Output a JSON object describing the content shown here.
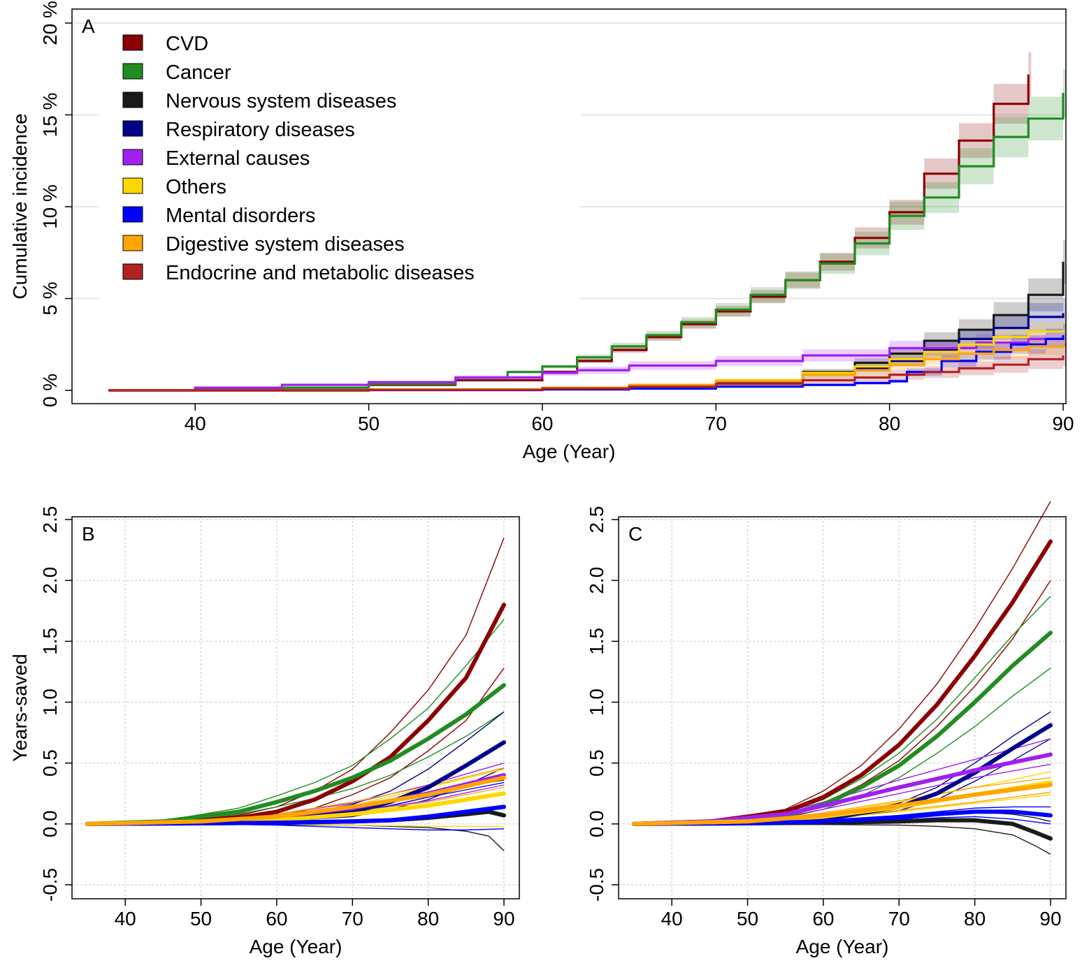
{
  "colors": {
    "CVD": "#8B0000",
    "Cancer": "#228B22",
    "Nervous system diseases": "#1a1a1a",
    "Respiratory diseases": "#00008B",
    "External causes": "#A020F0",
    "Others": "#FFD700",
    "Mental disorders": "#0000FF",
    "Digestive system diseases": "#FFA500",
    "Endocrine and metabolic diseases": "#B22222"
  },
  "chart_data": [
    {
      "panel": "A",
      "type": "line",
      "step": true,
      "title": "",
      "xlabel": "Age (Year)",
      "ylabel": "Cumulative incidence",
      "xlim": [
        35,
        90
      ],
      "ylim": [
        0,
        20
      ],
      "xticks": [
        40,
        50,
        60,
        70,
        80,
        90
      ],
      "yticks": [
        0,
        5,
        10,
        15,
        20
      ],
      "ytick_labels": [
        "0 %",
        "5 %",
        "10 %",
        "15 %",
        "20 %"
      ],
      "grid": "horizontal",
      "legend": {
        "placement": "top-left",
        "entries": [
          "CVD",
          "Cancer",
          "Nervous system diseases",
          "Respiratory diseases",
          "External causes",
          "Others",
          "Mental disorders",
          "Digestive system diseases",
          "Endocrine and metabolic diseases"
        ]
      },
      "series": [
        {
          "name": "CVD",
          "x": [
            35,
            40,
            45,
            50,
            55,
            60,
            62,
            64,
            66,
            68,
            70,
            72,
            74,
            76,
            78,
            80,
            82,
            84,
            86,
            88
          ],
          "y": [
            0,
            0.05,
            0.15,
            0.3,
            0.55,
            1.0,
            1.6,
            2.2,
            2.9,
            3.6,
            4.3,
            5.1,
            6.0,
            7.0,
            8.3,
            9.7,
            11.8,
            13.6,
            15.6,
            17.2
          ],
          "band": 1.2
        },
        {
          "name": "Cancer",
          "x": [
            35,
            40,
            45,
            50,
            55,
            58,
            60,
            62,
            64,
            66,
            68,
            70,
            72,
            74,
            76,
            78,
            80,
            82,
            84,
            86,
            88,
            90
          ],
          "y": [
            0,
            0.05,
            0.15,
            0.35,
            0.7,
            1.0,
            1.3,
            1.8,
            2.4,
            3.0,
            3.7,
            4.4,
            5.2,
            6.0,
            6.9,
            8.0,
            9.5,
            10.5,
            12.2,
            13.8,
            14.8,
            16.2
          ],
          "band": 1.3
        },
        {
          "name": "Nervous system diseases",
          "x": [
            35,
            50,
            60,
            65,
            70,
            75,
            78,
            80,
            82,
            84,
            86,
            88,
            90
          ],
          "y": [
            0,
            0.03,
            0.1,
            0.25,
            0.5,
            1.0,
            1.5,
            2.0,
            2.7,
            3.3,
            4.1,
            5.2,
            7.0
          ],
          "band": 1.2
        },
        {
          "name": "Respiratory diseases",
          "x": [
            35,
            50,
            60,
            65,
            70,
            75,
            78,
            80,
            82,
            84,
            86,
            88,
            90
          ],
          "y": [
            0,
            0.02,
            0.08,
            0.2,
            0.45,
            0.9,
            1.2,
            1.6,
            2.2,
            2.8,
            3.4,
            4.0,
            4.2
          ],
          "band": 0.8
        },
        {
          "name": "External causes",
          "x": [
            35,
            40,
            45,
            50,
            55,
            60,
            62,
            65,
            70,
            75,
            80,
            85,
            88,
            90
          ],
          "y": [
            0,
            0.15,
            0.3,
            0.45,
            0.7,
            0.95,
            1.1,
            1.35,
            1.6,
            1.9,
            2.3,
            2.6,
            2.8,
            2.9
          ],
          "band": 0.5
        },
        {
          "name": "Others",
          "x": [
            35,
            50,
            60,
            65,
            70,
            75,
            78,
            80,
            82,
            84,
            86,
            88,
            90
          ],
          "y": [
            0,
            0.05,
            0.15,
            0.3,
            0.55,
            0.95,
            1.3,
            1.7,
            2.1,
            2.5,
            2.9,
            3.2,
            3.3
          ],
          "band": 0.5
        },
        {
          "name": "Mental disorders",
          "x": [
            35,
            50,
            60,
            65,
            70,
            75,
            78,
            80,
            81,
            83,
            85,
            87,
            89,
            90
          ],
          "y": [
            0,
            0.02,
            0.05,
            0.1,
            0.2,
            0.3,
            0.4,
            0.5,
            1.0,
            1.6,
            2.1,
            2.5,
            2.8,
            3.0
          ],
          "band": 0.6
        },
        {
          "name": "Digestive system diseases",
          "x": [
            35,
            50,
            60,
            65,
            70,
            75,
            78,
            80,
            82,
            84,
            86,
            88,
            90
          ],
          "y": [
            0,
            0.05,
            0.15,
            0.3,
            0.5,
            0.85,
            1.1,
            1.4,
            1.7,
            2.0,
            2.2,
            2.4,
            2.5
          ],
          "band": 0.5
        },
        {
          "name": "Endocrine and metabolic diseases",
          "x": [
            35,
            50,
            60,
            65,
            70,
            75,
            78,
            80,
            82,
            84,
            86,
            88,
            90
          ],
          "y": [
            0,
            0.03,
            0.1,
            0.2,
            0.35,
            0.55,
            0.7,
            0.85,
            1.0,
            1.2,
            1.4,
            1.7,
            1.9
          ],
          "band": 0.6
        }
      ]
    },
    {
      "panel": "B",
      "type": "line",
      "title": "",
      "xlabel": "Age (Year)",
      "ylabel": "Years-saved",
      "xlim": [
        35,
        90
      ],
      "ylim": [
        -0.5,
        2.5
      ],
      "xticks": [
        40,
        50,
        60,
        70,
        80,
        90
      ],
      "yticks": [
        -0.5,
        0.0,
        0.5,
        1.0,
        1.5,
        2.0,
        2.5
      ],
      "ytick_labels": [
        "-0.5",
        "0.0",
        "0.5",
        "1.0",
        "1.5",
        "2.0",
        "2.5"
      ],
      "grid": "both",
      "series": [
        {
          "name": "CVD",
          "x": [
            35,
            45,
            55,
            60,
            65,
            70,
            75,
            80,
            85,
            90
          ],
          "y": [
            0,
            0.01,
            0.05,
            0.1,
            0.2,
            0.35,
            0.55,
            0.85,
            1.2,
            1.8
          ],
          "lo": [
            0,
            0.005,
            0.03,
            0.06,
            0.13,
            0.24,
            0.38,
            0.6,
            0.85,
            1.28
          ],
          "hi": [
            0,
            0.015,
            0.07,
            0.14,
            0.27,
            0.45,
            0.75,
            1.1,
            1.55,
            2.35
          ]
        },
        {
          "name": "Cancer",
          "x": [
            35,
            45,
            55,
            60,
            65,
            70,
            75,
            80,
            85,
            90
          ],
          "y": [
            0,
            0.02,
            0.1,
            0.18,
            0.27,
            0.38,
            0.52,
            0.7,
            0.9,
            1.14
          ],
          "lo": [
            0,
            0.015,
            0.08,
            0.14,
            0.21,
            0.29,
            0.4,
            0.55,
            0.72,
            0.92
          ],
          "hi": [
            0,
            0.025,
            0.13,
            0.23,
            0.34,
            0.48,
            0.7,
            0.95,
            1.3,
            1.68
          ]
        },
        {
          "name": "Nervous system diseases",
          "x": [
            35,
            50,
            60,
            70,
            75,
            80,
            85,
            88,
            90
          ],
          "y": [
            0,
            0.005,
            0.01,
            0.02,
            0.03,
            0.05,
            0.08,
            0.1,
            0.07
          ],
          "lo": [
            0,
            0,
            -0.005,
            -0.01,
            -0.02,
            -0.03,
            -0.06,
            -0.1,
            -0.22
          ],
          "hi": [
            0,
            0.01,
            0.03,
            0.1,
            0.15,
            0.22,
            0.3,
            0.34,
            0.36
          ]
        },
        {
          "name": "Respiratory diseases",
          "x": [
            35,
            50,
            60,
            70,
            75,
            80,
            85,
            90
          ],
          "y": [
            0,
            0.01,
            0.03,
            0.1,
            0.18,
            0.3,
            0.48,
            0.67
          ],
          "lo": [
            0,
            0.005,
            0.02,
            0.06,
            0.12,
            0.2,
            0.32,
            0.46
          ],
          "hi": [
            0,
            0.015,
            0.05,
            0.16,
            0.27,
            0.45,
            0.68,
            0.92
          ]
        },
        {
          "name": "External causes",
          "x": [
            35,
            45,
            55,
            60,
            70,
            80,
            90
          ],
          "y": [
            0,
            0.01,
            0.03,
            0.06,
            0.13,
            0.25,
            0.4
          ],
          "lo": [
            0,
            0.008,
            0.02,
            0.04,
            0.1,
            0.19,
            0.32
          ],
          "hi": [
            0,
            0.012,
            0.04,
            0.08,
            0.17,
            0.32,
            0.5
          ]
        },
        {
          "name": "Others",
          "x": [
            35,
            50,
            60,
            70,
            80,
            90
          ],
          "y": [
            0,
            0.01,
            0.03,
            0.08,
            0.15,
            0.25
          ],
          "lo": [
            0,
            0,
            0,
            -0.01,
            -0.02,
            -0.02
          ],
          "hi": [
            0,
            0.02,
            0.06,
            0.15,
            0.3,
            0.45
          ]
        },
        {
          "name": "Mental disorders",
          "x": [
            35,
            50,
            60,
            70,
            75,
            80,
            85,
            90
          ],
          "y": [
            0,
            0.005,
            0.01,
            0.02,
            0.03,
            0.06,
            0.1,
            0.14
          ],
          "lo": [
            0,
            0,
            -0.01,
            -0.03,
            -0.04,
            -0.05,
            -0.05,
            -0.04
          ],
          "hi": [
            0,
            0.01,
            0.04,
            0.09,
            0.15,
            0.22,
            0.28,
            0.34
          ]
        },
        {
          "name": "Digestive system diseases",
          "x": [
            35,
            50,
            60,
            70,
            80,
            90
          ],
          "y": [
            0,
            0.02,
            0.06,
            0.14,
            0.24,
            0.38
          ],
          "lo": [
            0,
            0.01,
            0.04,
            0.1,
            0.18,
            0.3
          ],
          "hi": [
            0,
            0.03,
            0.08,
            0.18,
            0.31,
            0.46
          ]
        }
      ]
    },
    {
      "panel": "C",
      "type": "line",
      "title": "",
      "xlabel": "Age (Year)",
      "ylabel": "",
      "xlim": [
        35,
        90
      ],
      "ylim": [
        -0.5,
        2.5
      ],
      "xticks": [
        40,
        50,
        60,
        70,
        80,
        90
      ],
      "yticks": [
        -0.5,
        0.0,
        0.5,
        1.0,
        1.5,
        2.0,
        2.5
      ],
      "ytick_labels": [
        "-0.5",
        "0.0",
        "0.5",
        "1.0",
        "1.5",
        "2.0",
        "2.5"
      ],
      "grid": "both",
      "series": [
        {
          "name": "CVD",
          "x": [
            35,
            45,
            55,
            60,
            65,
            70,
            75,
            80,
            85,
            90
          ],
          "y": [
            0,
            0.02,
            0.1,
            0.22,
            0.4,
            0.65,
            0.98,
            1.38,
            1.82,
            2.32
          ],
          "lo": [
            0,
            0.015,
            0.08,
            0.17,
            0.32,
            0.52,
            0.8,
            1.13,
            1.52,
            2.0
          ],
          "hi": [
            0,
            0.025,
            0.12,
            0.27,
            0.48,
            0.78,
            1.15,
            1.6,
            2.1,
            2.65
          ]
        },
        {
          "name": "Cancer",
          "x": [
            35,
            45,
            55,
            60,
            65,
            70,
            75,
            80,
            85,
            90
          ],
          "y": [
            0,
            0.015,
            0.07,
            0.16,
            0.3,
            0.48,
            0.72,
            1.0,
            1.3,
            1.57
          ],
          "lo": [
            0,
            0.01,
            0.05,
            0.12,
            0.23,
            0.38,
            0.58,
            0.8,
            1.05,
            1.28
          ],
          "hi": [
            0,
            0.02,
            0.09,
            0.2,
            0.37,
            0.58,
            0.86,
            1.2,
            1.55,
            1.87
          ]
        },
        {
          "name": "Nervous system diseases",
          "x": [
            35,
            50,
            60,
            70,
            75,
            80,
            85,
            88,
            90
          ],
          "y": [
            0,
            0.005,
            0.01,
            0.02,
            0.03,
            0.03,
            0.0,
            -0.07,
            -0.12
          ],
          "lo": [
            0,
            0,
            -0.005,
            -0.01,
            -0.02,
            -0.04,
            -0.09,
            -0.18,
            -0.25
          ],
          "hi": [
            0,
            0.01,
            0.02,
            0.06,
            0.08,
            0.1,
            0.08,
            0.05,
            0.02
          ]
        },
        {
          "name": "Respiratory diseases",
          "x": [
            35,
            50,
            60,
            70,
            75,
            80,
            85,
            90
          ],
          "y": [
            0,
            0.01,
            0.04,
            0.14,
            0.25,
            0.42,
            0.62,
            0.81
          ],
          "lo": [
            0,
            0.008,
            0.03,
            0.11,
            0.2,
            0.35,
            0.52,
            0.7
          ],
          "hi": [
            0,
            0.012,
            0.05,
            0.17,
            0.3,
            0.5,
            0.72,
            0.92
          ]
        },
        {
          "name": "External causes",
          "x": [
            35,
            45,
            55,
            60,
            70,
            80,
            90
          ],
          "y": [
            0,
            0.02,
            0.08,
            0.15,
            0.3,
            0.44,
            0.57
          ],
          "lo": [
            0,
            0.015,
            0.06,
            0.12,
            0.25,
            0.38,
            0.49
          ],
          "hi": [
            0,
            0.025,
            0.1,
            0.18,
            0.36,
            0.53,
            0.7
          ]
        },
        {
          "name": "Others",
          "x": [
            35,
            50,
            60,
            70,
            80,
            90
          ],
          "y": [
            0,
            0.02,
            0.06,
            0.14,
            0.24,
            0.34
          ],
          "lo": [
            0,
            0.01,
            0.04,
            0.1,
            0.17,
            0.24
          ],
          "hi": [
            0,
            0.03,
            0.08,
            0.18,
            0.3,
            0.43
          ]
        },
        {
          "name": "Mental disorders",
          "x": [
            35,
            50,
            60,
            70,
            75,
            80,
            85,
            90
          ],
          "y": [
            0,
            0.005,
            0.02,
            0.05,
            0.08,
            0.1,
            0.1,
            0.07
          ],
          "lo": [
            0,
            0,
            0.01,
            0.03,
            0.05,
            0.06,
            0.04,
            0.0
          ],
          "hi": [
            0,
            0.01,
            0.03,
            0.07,
            0.1,
            0.13,
            0.14,
            0.14
          ]
        },
        {
          "name": "Digestive system diseases",
          "x": [
            35,
            50,
            60,
            70,
            80,
            90
          ],
          "y": [
            0,
            0.02,
            0.07,
            0.15,
            0.24,
            0.32
          ],
          "lo": [
            0,
            0.015,
            0.05,
            0.11,
            0.18,
            0.26
          ],
          "hi": [
            0,
            0.025,
            0.09,
            0.19,
            0.3,
            0.38
          ]
        }
      ]
    }
  ]
}
